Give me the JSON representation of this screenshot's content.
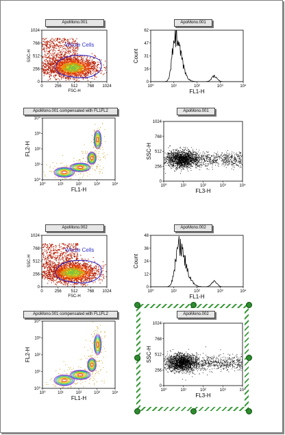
{
  "plots": [
    {
      "id": "p1",
      "kind": "density",
      "title": "ApoMono.001",
      "xlabel": "FSC-H",
      "ylabel": "SSC-H",
      "xticks": [
        "0",
        "256",
        "512",
        "768",
        "1024"
      ],
      "yticks": [
        "0",
        "256",
        "512",
        "768",
        "1024"
      ],
      "gate_label": "Whole Cells"
    },
    {
      "id": "p2",
      "kind": "histogram",
      "title": "ApoMono.001",
      "xlabel": "FL1-H",
      "ylabel": "Count",
      "xticks": [
        "10⁰",
        "10¹",
        "10²",
        "10³",
        "10⁴"
      ],
      "yticks": [
        "0",
        "16",
        "31",
        "47",
        "62"
      ]
    },
    {
      "id": "p3",
      "kind": "contour",
      "title": "ApoMono.001 compensated with FL1FL2",
      "xlabel": "FL1-H",
      "ylabel": "FL2-H",
      "xticks": [
        "10⁰",
        "10¹",
        "10²",
        "10³",
        "10⁴"
      ],
      "yticks": [
        "10⁰",
        "10¹",
        "10²",
        "10³",
        "10⁴"
      ]
    },
    {
      "id": "p4",
      "kind": "dot",
      "title": "ApoMono.001",
      "xlabel": "FL3-H",
      "ylabel": "SSC-H",
      "xticks": [
        "10⁰",
        "10¹",
        "10²",
        "10³",
        "10⁴"
      ],
      "yticks": [
        "0",
        "256",
        "512",
        "768",
        "1024"
      ]
    },
    {
      "id": "p5",
      "kind": "density",
      "title": "ApoMono.002",
      "xlabel": "FSC-H",
      "ylabel": "SSC-H",
      "xticks": [
        "0",
        "256",
        "512",
        "768",
        "1024"
      ],
      "yticks": [
        "0",
        "256",
        "512",
        "768",
        "1024"
      ],
      "gate_label": "Whole Cells"
    },
    {
      "id": "p6",
      "kind": "histogram",
      "title": "ApoMono.002",
      "xlabel": "FL1-H",
      "ylabel": "Count",
      "xticks": [
        "10⁰",
        "10¹",
        "10²",
        "10³",
        "10⁴"
      ],
      "yticks": [
        "0",
        "12",
        "24",
        "36",
        "48"
      ]
    },
    {
      "id": "p7",
      "kind": "contour",
      "title": "ApoMono.001 compensated with FL1FL2",
      "xlabel": "FL1-H",
      "ylabel": "FL2-H",
      "xticks": [
        "10⁰",
        "10¹",
        "10²",
        "10³",
        "10⁴"
      ],
      "yticks": [
        "10⁰",
        "10¹",
        "10²",
        "10³",
        "10⁴"
      ]
    },
    {
      "id": "p8",
      "kind": "dot",
      "title": "ApoMono.002",
      "xlabel": "FL3-H",
      "ylabel": "SSC-H",
      "xticks": [
        "10⁰",
        "10¹",
        "10²",
        "10³",
        "10⁴"
      ],
      "yticks": [
        "0",
        "256",
        "512",
        "768",
        "1024"
      ]
    }
  ]
}
